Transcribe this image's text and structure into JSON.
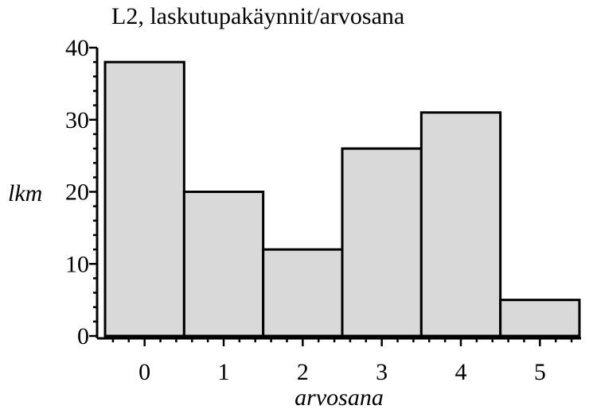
{
  "chart_data": {
    "type": "bar",
    "title": "L2, laskutupakäynnit/arvosana",
    "xlabel": "arvosana",
    "ylabel": "lkm",
    "categories": [
      "0",
      "1",
      "2",
      "3",
      "4",
      "5"
    ],
    "values": [
      38,
      20,
      12,
      26,
      31,
      5
    ],
    "ylim": [
      0,
      40
    ],
    "yticks": [
      "0",
      "10",
      "20",
      "30",
      "40"
    ],
    "grid": false,
    "bar_color": "#d9d9d9",
    "edge_color": "#000000"
  }
}
